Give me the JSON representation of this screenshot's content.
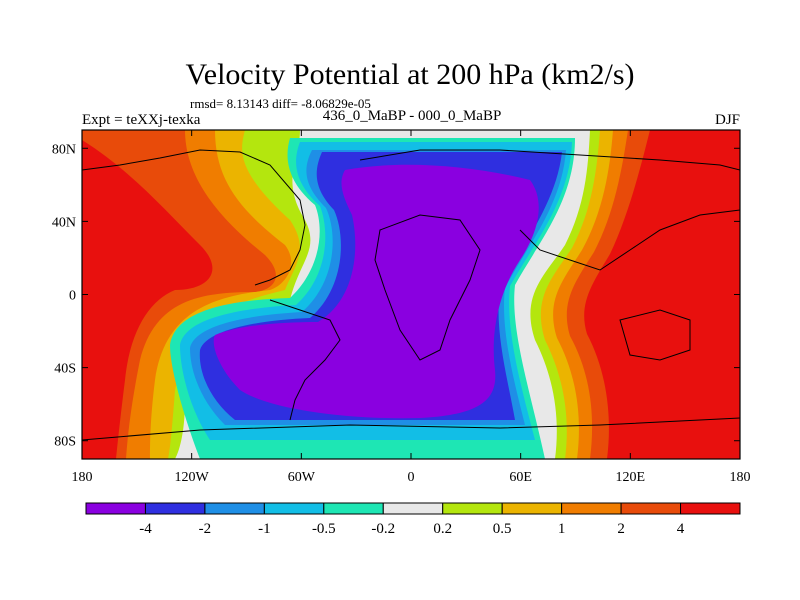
{
  "chart_data": {
    "type": "heatmap",
    "title": "Velocity Potential at 200 hPa (km2/s)",
    "stats_text": "rmsd= 8.13143 diff= -8.06829e-05",
    "left_label": "Expt = teXXj-texka",
    "center_label": "436_0_MaBP - 000_0_MaBP",
    "right_label": "DJF",
    "x_ticks": [
      {
        "value": -180,
        "label": "180"
      },
      {
        "value": -120,
        "label": "120W"
      },
      {
        "value": -60,
        "label": "60W"
      },
      {
        "value": 0,
        "label": "0"
      },
      {
        "value": 60,
        "label": "60E"
      },
      {
        "value": 120,
        "label": "120E"
      },
      {
        "value": 180,
        "label": "180"
      }
    ],
    "y_ticks": [
      {
        "value": 80,
        "label": "80N"
      },
      {
        "value": 40,
        "label": "40N"
      },
      {
        "value": 0,
        "label": "0"
      },
      {
        "value": -40,
        "label": "40S"
      },
      {
        "value": -80,
        "label": "80S"
      }
    ],
    "xlim": [
      -180,
      180
    ],
    "ylim": [
      -90,
      90
    ],
    "colorbar": {
      "levels": [
        "-4",
        "-2",
        "-1",
        "-0.5",
        "-0.2",
        "0.2",
        "0.5",
        "1",
        "2",
        "4"
      ],
      "colors": [
        "#8a00e0",
        "#2f2fe0",
        "#1f8fe6",
        "#12bee6",
        "#1ee6b4",
        "#e8e8e8",
        "#b4e60e",
        "#ebb400",
        "#f07d00",
        "#e84b0a",
        "#e8100e"
      ]
    }
  }
}
